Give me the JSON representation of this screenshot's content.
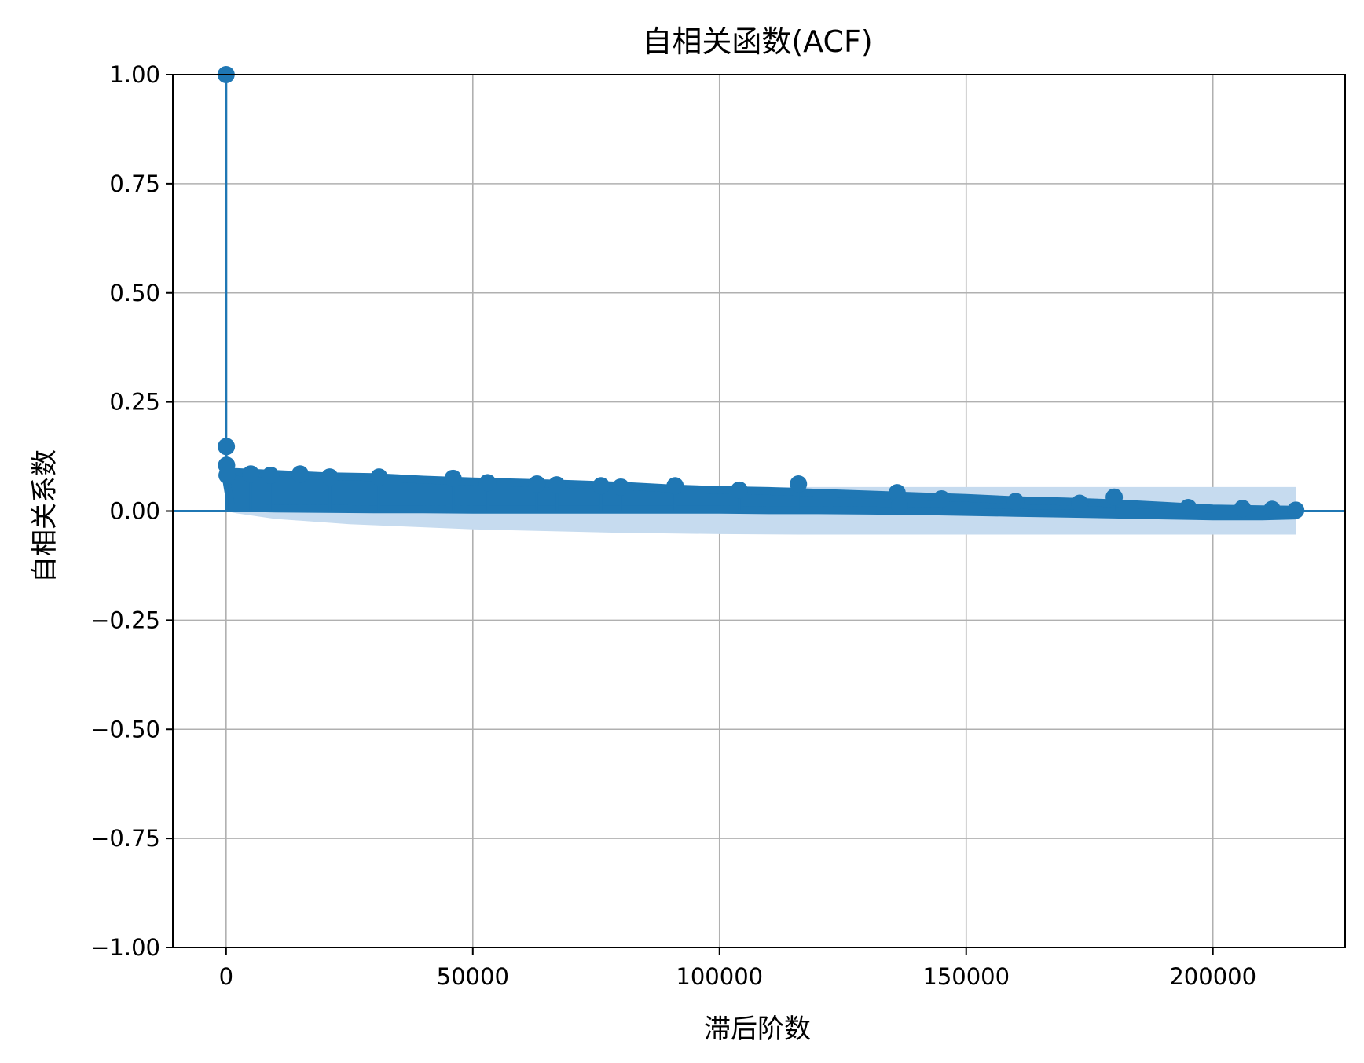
{
  "chart_data": {
    "type": "scatter",
    "subtype": "stem",
    "title": "自相关函数(ACF)",
    "xlabel": "滞后阶数",
    "ylabel": "自相关系数",
    "xlim": [
      -10800,
      226800
    ],
    "ylim": [
      -1.0,
      1.0
    ],
    "xticks": [
      0,
      50000,
      100000,
      150000,
      200000
    ],
    "xtick_labels": [
      "0",
      "50000",
      "100000",
      "150000",
      "200000"
    ],
    "yticks": [
      1.0,
      0.75,
      0.5,
      0.25,
      0.0,
      -0.25,
      -0.5,
      -0.75,
      -1.0
    ],
    "ytick_labels": [
      "1.00",
      "0.75",
      "0.50",
      "0.25",
      "0.00",
      "−0.25",
      "−0.50",
      "−0.75",
      "−1.00"
    ],
    "grid": true,
    "colors": {
      "series": "#1f77b4",
      "band": "#c6dbef",
      "grid": "#b0b0b0"
    },
    "confidence_band": {
      "x": [
        0,
        2000,
        10000,
        25000,
        50000,
        80000,
        100000,
        116000,
        150000,
        200000,
        216800
      ],
      "upper": [
        0.0,
        0.005,
        0.018,
        0.03,
        0.042,
        0.05,
        0.053,
        0.055,
        0.055,
        0.055,
        0.055
      ],
      "lower": [
        0.0,
        -0.005,
        -0.018,
        -0.03,
        -0.042,
        -0.05,
        -0.053,
        -0.054,
        -0.054,
        -0.054,
        -0.054
      ]
    },
    "envelope": {
      "x": [
        0,
        1000,
        10000,
        20000,
        30000,
        40000,
        50000,
        60000,
        70000,
        80000,
        90000,
        100000,
        110000,
        120000,
        130000,
        140000,
        150000,
        160000,
        170000,
        180000,
        190000,
        200000,
        210000,
        216800
      ],
      "upper": [
        0.1,
        0.09,
        0.085,
        0.08,
        0.078,
        0.072,
        0.068,
        0.065,
        0.062,
        0.058,
        0.052,
        0.048,
        0.046,
        0.042,
        0.038,
        0.034,
        0.03,
        0.025,
        0.022,
        0.018,
        0.012,
        0.006,
        0.004,
        0.003
      ],
      "lower": [
        0.075,
        0.008,
        0.006,
        0.005,
        0.004,
        0.004,
        0.003,
        0.003,
        0.003,
        0.003,
        0.003,
        0.003,
        0.002,
        0.002,
        0.001,
        0.0,
        -0.002,
        -0.004,
        -0.006,
        -0.008,
        -0.01,
        -0.012,
        -0.012,
        -0.01
      ]
    },
    "lags": [
      0,
      50,
      100,
      200,
      5000,
      9000,
      15000,
      21000,
      31000,
      46000,
      53000,
      63000,
      67000,
      76000,
      80000,
      91000,
      104000,
      116000,
      136000,
      136500,
      145000,
      160000,
      173000,
      180000,
      195000,
      206000,
      212000,
      216800
    ],
    "acf": [
      1.0,
      0.148,
      0.105,
      0.082,
      0.085,
      0.082,
      0.085,
      0.078,
      0.078,
      0.075,
      0.065,
      0.062,
      0.06,
      0.058,
      0.055,
      0.058,
      0.048,
      0.062,
      0.042,
      0.012,
      0.028,
      0.022,
      0.018,
      0.032,
      0.008,
      0.006,
      0.004,
      0.002
    ]
  }
}
